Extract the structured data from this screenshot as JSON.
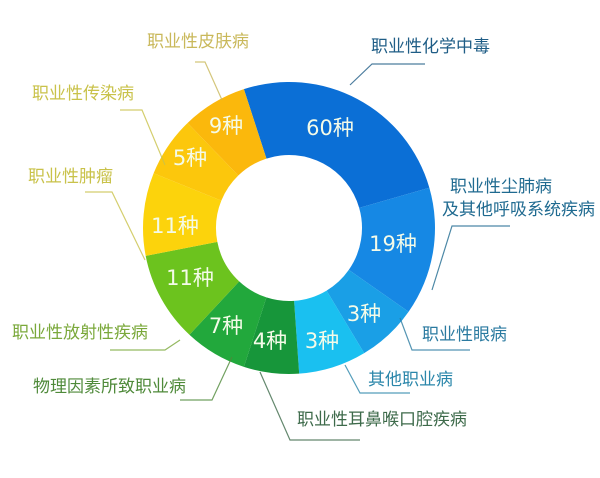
{
  "chart_data": {
    "type": "pie",
    "donut": true,
    "unit": "种",
    "categories": [
      "职业性化学中毒",
      "职业性尘肺病及其他呼吸系统疾病",
      "职业性眼病",
      "其他职业病",
      "职业性耳鼻喉口腔疾病",
      "物理因素所致职业病",
      "职业性放射性疾病",
      "职业性肿瘤",
      "职业性传染病",
      "职业性皮肤病"
    ],
    "values": [
      60,
      19,
      3,
      3,
      4,
      7,
      11,
      11,
      5,
      9
    ],
    "value_labels": [
      "60种",
      "19种",
      "3种",
      "3种",
      "4种",
      "7种",
      "11种",
      "11种",
      "5种",
      "9种"
    ],
    "colors": [
      "#0b6fd6",
      "#1688e4",
      "#1a9fe6",
      "#1ac0f0",
      "#17963a",
      "#22a83c",
      "#6cc31e",
      "#fcd30c",
      "#fcc70c",
      "#fbb80c"
    ],
    "label_colors": [
      "#1f5d86",
      "#1f6a90",
      "#2a7aa0",
      "#2a86aa",
      "#3d6a4a",
      "#4f8a3a",
      "#7aa83a",
      "#c9c24a",
      "#c9c24a",
      "#c9b85a"
    ]
  }
}
